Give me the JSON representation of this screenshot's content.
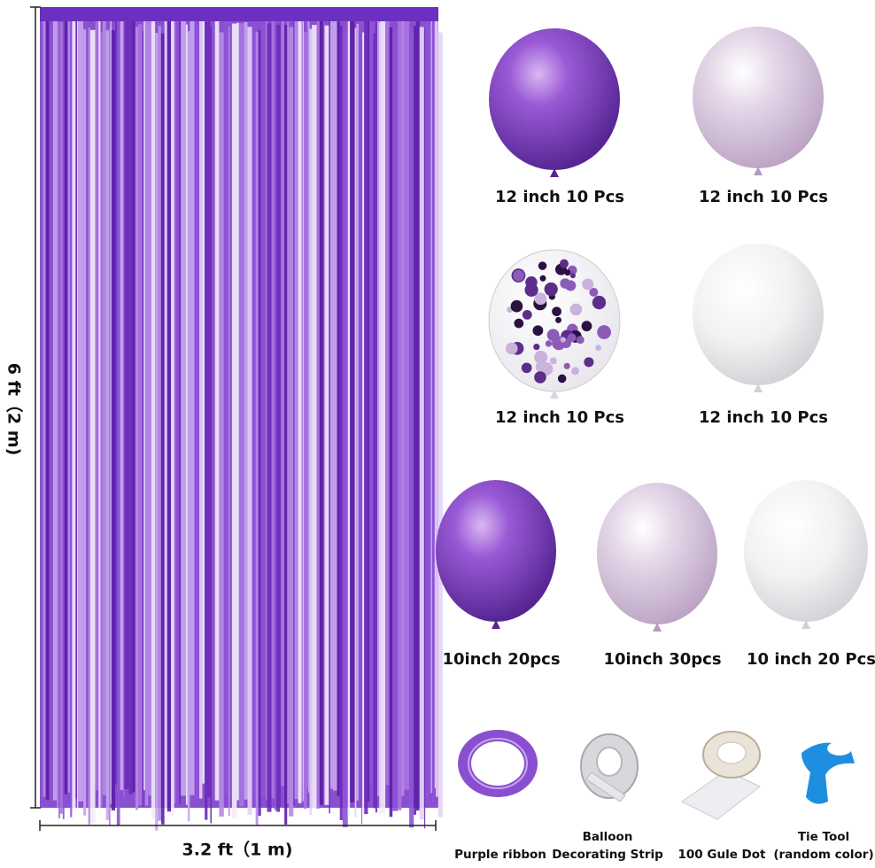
{
  "dimensions": {
    "height": "6 ft（2 m)",
    "width": "3.2 ft（1 m)"
  },
  "balloons": [
    {
      "label": "12 inch 10 Pcs"
    },
    {
      "label": "12 inch 10 Pcs"
    },
    {
      "label": "12 inch 10 Pcs"
    },
    {
      "label": "12 inch 10 Pcs"
    },
    {
      "label": "10inch 20pcs"
    },
    {
      "label": "10inch 30pcs"
    },
    {
      "label": "10 inch 20 Pcs"
    }
  ],
  "accessories": [
    {
      "label_lines": [
        "Purple ribbon"
      ]
    },
    {
      "label_lines": [
        "Balloon",
        "Decorating Strip"
      ]
    },
    {
      "label_lines": [
        "100 Gule Dot"
      ]
    },
    {
      "label_lines": [
        "Tie Tool",
        "(random color)"
      ]
    }
  ]
}
